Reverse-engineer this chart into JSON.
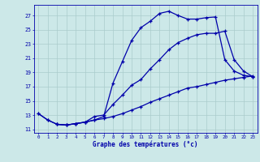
{
  "xlabel": "Graphe des températures (°c)",
  "bg_color": "#cce8e8",
  "line_color": "#0000aa",
  "grid_color": "#aacccc",
  "xlim": [
    -0.5,
    23.5
  ],
  "ylim": [
    10.5,
    28.5
  ],
  "yticks": [
    11,
    13,
    15,
    17,
    19,
    21,
    23,
    25,
    27
  ],
  "xticks": [
    0,
    1,
    2,
    3,
    4,
    5,
    6,
    7,
    8,
    9,
    10,
    11,
    12,
    13,
    14,
    15,
    16,
    17,
    18,
    19,
    20,
    21,
    22,
    23
  ],
  "line1_x": [
    0,
    1,
    2,
    3,
    4,
    5,
    6,
    7,
    8,
    9,
    10,
    11,
    12,
    13,
    14,
    15,
    16,
    17,
    18,
    19,
    20,
    21,
    22,
    23
  ],
  "line1_y": [
    13.2,
    12.3,
    11.7,
    11.6,
    11.8,
    12.0,
    12.3,
    12.8,
    17.5,
    20.5,
    23.5,
    25.3,
    26.2,
    27.3,
    27.6,
    27.0,
    26.5,
    26.5,
    26.7,
    26.8,
    20.8,
    19.2,
    18.6,
    18.4
  ],
  "line2_x": [
    2,
    3,
    4,
    5,
    6,
    7,
    8,
    9,
    10,
    11,
    12,
    13,
    14,
    15,
    16,
    17,
    18,
    19,
    20,
    21,
    22,
    23
  ],
  "line2_y": [
    11.7,
    11.6,
    11.8,
    12.0,
    12.8,
    13.0,
    14.5,
    15.8,
    17.2,
    18.0,
    19.5,
    20.8,
    22.2,
    23.2,
    23.8,
    24.3,
    24.5,
    24.5,
    24.8,
    20.8,
    19.2,
    18.4
  ],
  "line3_x": [
    0,
    1,
    2,
    3,
    4,
    5,
    6,
    7,
    8,
    9,
    10,
    11,
    12,
    13,
    14,
    15,
    16,
    17,
    18,
    19,
    20,
    21,
    22,
    23
  ],
  "line3_y": [
    13.2,
    12.3,
    11.7,
    11.6,
    11.8,
    12.0,
    12.3,
    12.5,
    12.8,
    13.2,
    13.7,
    14.2,
    14.8,
    15.3,
    15.8,
    16.3,
    16.8,
    17.0,
    17.3,
    17.6,
    17.9,
    18.1,
    18.3,
    18.5
  ]
}
